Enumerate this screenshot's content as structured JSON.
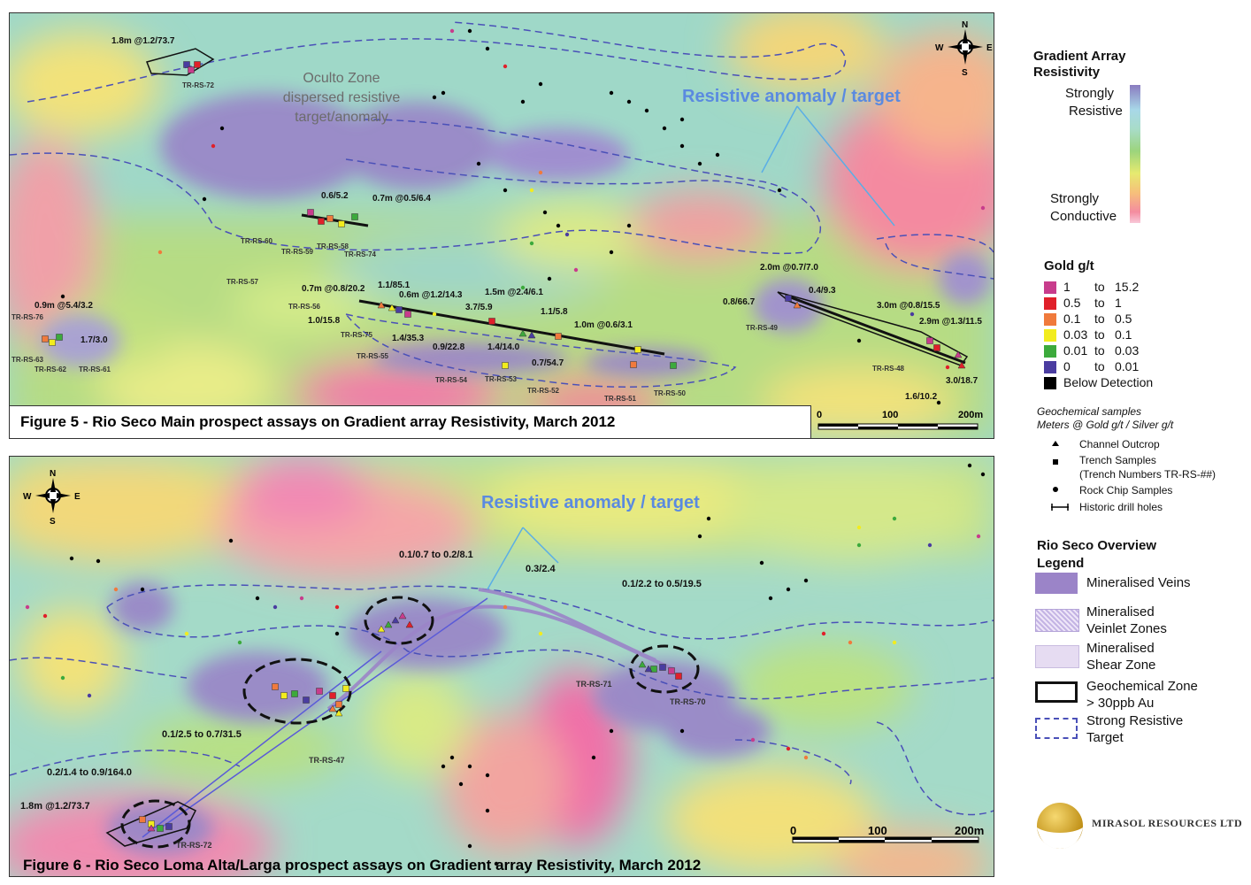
{
  "figure5": {
    "caption": "Figure 5 - Rio Seco Main prospect assays on Gradient array Resistivity, March 2012",
    "zone_label": [
      "Oculto Zone",
      "dispersed resistive",
      "target/anomaly"
    ],
    "target_label": "Resistive anomaly / target",
    "scale": [
      "0",
      "100",
      "200m"
    ],
    "compass": {
      "n": "N",
      "s": "S",
      "e": "E",
      "w": "W"
    },
    "assays": [
      "1.8m @1.2/73.7",
      "0.6/5.2",
      "0.7m @0.5/6.4",
      "0.9m @5.4/3.2",
      "1.7/3.0",
      "0.7m @0.8/20.2",
      "1.1/85.1",
      "0.6m @1.2/14.3",
      "1.0/15.8",
      "1.4/35.3",
      "0.9/22.8",
      "3.7/5.9",
      "1.5m @2.4/6.1",
      "1.1/5.8",
      "1.0m @0.6/3.1",
      "1.4/14.0",
      "0.7/54.7",
      "2.0m @0.7/7.0",
      "0.4/9.3",
      "0.8/66.7",
      "3.0m @0.8/15.5",
      "2.9m @1.3/11.5",
      "1.6/10.2",
      "3.0/18.7"
    ],
    "trenches": [
      "TR-RS-72",
      "TR-RS-60",
      "TR-RS-59",
      "TR-RS-58",
      "TR-RS-74",
      "TR-RS-57",
      "TR-RS-56",
      "TR-RS-75",
      "TR-RS-55",
      "TR-RS-76",
      "TR-RS-63",
      "TR-RS-62",
      "TR-RS-61",
      "TR-RS-54",
      "TR-RS-53",
      "TR-RS-52",
      "TR-RS-51",
      "TR-RS-50",
      "TR-RS-49",
      "TR-RS-48"
    ]
  },
  "figure6": {
    "caption": "Figure 6 - Rio Seco Loma Alta/Larga prospect assays on Gradient array Resistivity, March 2012",
    "target_label": "Resistive anomaly / target",
    "scale": [
      "0",
      "100",
      "200m"
    ],
    "compass": {
      "n": "N",
      "s": "S",
      "e": "E",
      "w": "W"
    },
    "assays": [
      "0.1/0.7 to 0.2/8.1",
      "0.3/2.4",
      "0.1/2.2 to 0.5/19.5",
      "0.1/2.5 to 0.7/31.5",
      "0.2/1.4 to 0.9/164.0",
      "1.8m @1.2/73.7"
    ],
    "trenches": [
      "TR-RS-71",
      "TR-RS-70",
      "TR-RS-47",
      "TR-RS-72"
    ]
  },
  "legend": {
    "resistivity_title": [
      "Gradient Array",
      "Resistivity"
    ],
    "strong_resistive": [
      "Strongly",
      "Resistive"
    ],
    "strong_conductive": [
      "Strongly",
      "Conductive"
    ],
    "gold_title": "Gold g/t",
    "gold_classes": [
      {
        "min": "1",
        "to": "to",
        "max": "15.2",
        "color": "#c83c8c"
      },
      {
        "min": "0.5",
        "to": "to",
        "max": "1",
        "color": "#e0202a"
      },
      {
        "min": "0.1",
        "to": "to",
        "max": "0.5",
        "color": "#f07a3c"
      },
      {
        "min": "0.03",
        "to": "to",
        "max": "0.1",
        "color": "#f2ec1e"
      },
      {
        "min": "0.01",
        "to": "to",
        "max": "0.03",
        "color": "#3caa3c"
      },
      {
        "min": "0",
        "to": "to",
        "max": "0.01",
        "color": "#4a3ca0"
      }
    ],
    "below_detection": "Below Detection",
    "samples_title": [
      "Geochemical samples",
      "Meters @ Gold g/t / Silver g/t"
    ],
    "sample_types": [
      "Channel Outcrop",
      "Trench Samples",
      "(Trench Numbers TR-RS-##)",
      "Rock Chip Samples",
      "Historic drill holes"
    ],
    "overview_title": [
      "Rio Seco Overview",
      "Legend"
    ],
    "overview_items": [
      {
        "label": [
          "Mineralised Veins"
        ],
        "color": "#9b84c8"
      },
      {
        "label": [
          "Mineralised",
          "Veinlet Zones"
        ],
        "color": "#d4c6ea"
      },
      {
        "label": [
          "Mineralised",
          "Shear Zone"
        ],
        "color": "#e6dcf2"
      },
      {
        "label": [
          "Geochemical Zone",
          "> 30ppb Au"
        ],
        "color": "#ffffff"
      },
      {
        "label": [
          "Strong Resistive",
          "Target"
        ],
        "color": "#ffffff"
      }
    ],
    "company": "MIRASOL RESOURCES LTD"
  }
}
